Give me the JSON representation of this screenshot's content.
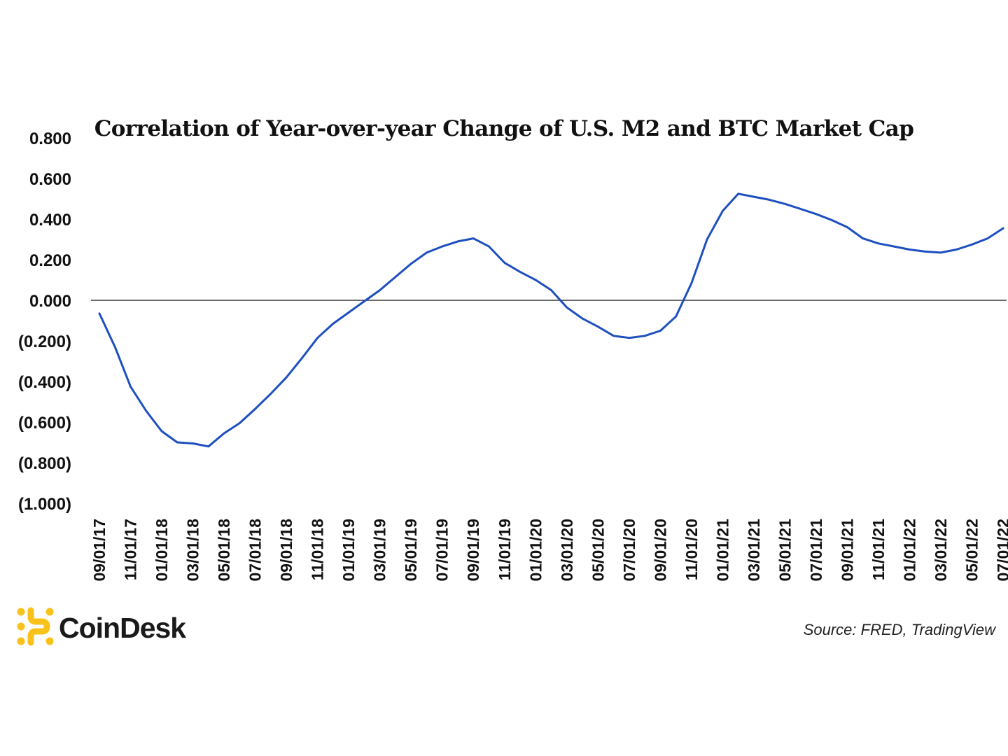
{
  "brand": {
    "name": "CoinDesk",
    "logo_icon": "coindesk-logo-icon",
    "logo_color": "#F9C21A"
  },
  "source": "Source: FRED, TradingView",
  "chart_data": {
    "type": "line",
    "title": "Correlation of Year-over-year Change of U.S. M2 and BTC Market Cap",
    "xlabel": "",
    "ylabel": "",
    "ylim": [
      -1.0,
      0.8
    ],
    "yticks": [
      0.8,
      0.6,
      0.4,
      0.2,
      0.0,
      -0.2,
      -0.4,
      -0.6,
      -0.8,
      -1.0
    ],
    "ytick_labels": [
      "0.800",
      "0.600",
      "0.400",
      "0.200",
      "0.000",
      "(0.200)",
      "(0.400)",
      "(0.600)",
      "(0.800)",
      "(1.000)"
    ],
    "xtick_labels": [
      "09/01/17",
      "11/01/17",
      "01/01/18",
      "03/01/18",
      "05/01/18",
      "07/01/18",
      "09/01/18",
      "11/01/18",
      "01/01/19",
      "03/01/19",
      "05/01/19",
      "07/01/19",
      "09/01/19",
      "11/01/19",
      "01/01/20",
      "03/01/20",
      "05/01/20",
      "07/01/20",
      "09/01/20",
      "11/01/20",
      "01/01/21",
      "03/01/21",
      "05/01/21",
      "07/01/21",
      "09/01/21",
      "11/01/21",
      "01/01/22",
      "03/01/22",
      "05/01/22",
      "07/01/22"
    ],
    "line_color": "#1D4FBF",
    "zero_line": true,
    "grid": false,
    "series": [
      {
        "x": [
          "09/01/17",
          "10/01/17",
          "11/01/17",
          "12/01/17",
          "01/01/18",
          "02/01/18",
          "03/01/18",
          "04/01/18",
          "05/01/18",
          "06/01/18",
          "07/01/18",
          "08/01/18",
          "09/01/18",
          "10/01/18",
          "11/01/18",
          "12/01/18",
          "01/01/19",
          "02/01/19",
          "03/01/19",
          "04/01/19",
          "05/01/19",
          "06/01/19",
          "07/01/19",
          "08/01/19",
          "09/01/19",
          "10/01/19",
          "11/01/19",
          "12/01/19",
          "01/01/20",
          "02/01/20",
          "03/01/20",
          "04/01/20",
          "05/01/20",
          "06/01/20",
          "07/01/20",
          "08/01/20",
          "09/01/20",
          "10/01/20",
          "11/01/20",
          "12/01/20",
          "01/01/21",
          "02/01/21",
          "03/01/21",
          "04/01/21",
          "05/01/21",
          "06/01/21",
          "07/01/21",
          "08/01/21",
          "09/01/21",
          "10/01/21",
          "11/01/21",
          "12/01/21",
          "01/01/22",
          "02/01/22",
          "03/01/22",
          "04/01/22",
          "05/01/22",
          "06/01/22",
          "07/01/22"
        ],
        "values": [
          -0.065,
          -0.23,
          -0.425,
          -0.545,
          -0.645,
          -0.7,
          -0.705,
          -0.72,
          -0.655,
          -0.605,
          -0.535,
          -0.46,
          -0.38,
          -0.285,
          -0.185,
          -0.115,
          -0.06,
          -0.005,
          0.05,
          0.115,
          0.18,
          0.235,
          0.265,
          0.29,
          0.305,
          0.265,
          0.185,
          0.14,
          0.1,
          0.05,
          -0.035,
          -0.09,
          -0.13,
          -0.175,
          -0.185,
          -0.175,
          -0.15,
          -0.08,
          0.085,
          0.3,
          0.44,
          0.525,
          0.51,
          0.495,
          0.475,
          0.45,
          0.425,
          0.395,
          0.36,
          0.305,
          0.28,
          0.265,
          0.25,
          0.24,
          0.235,
          0.25,
          0.275,
          0.305,
          0.355
        ]
      }
    ]
  }
}
